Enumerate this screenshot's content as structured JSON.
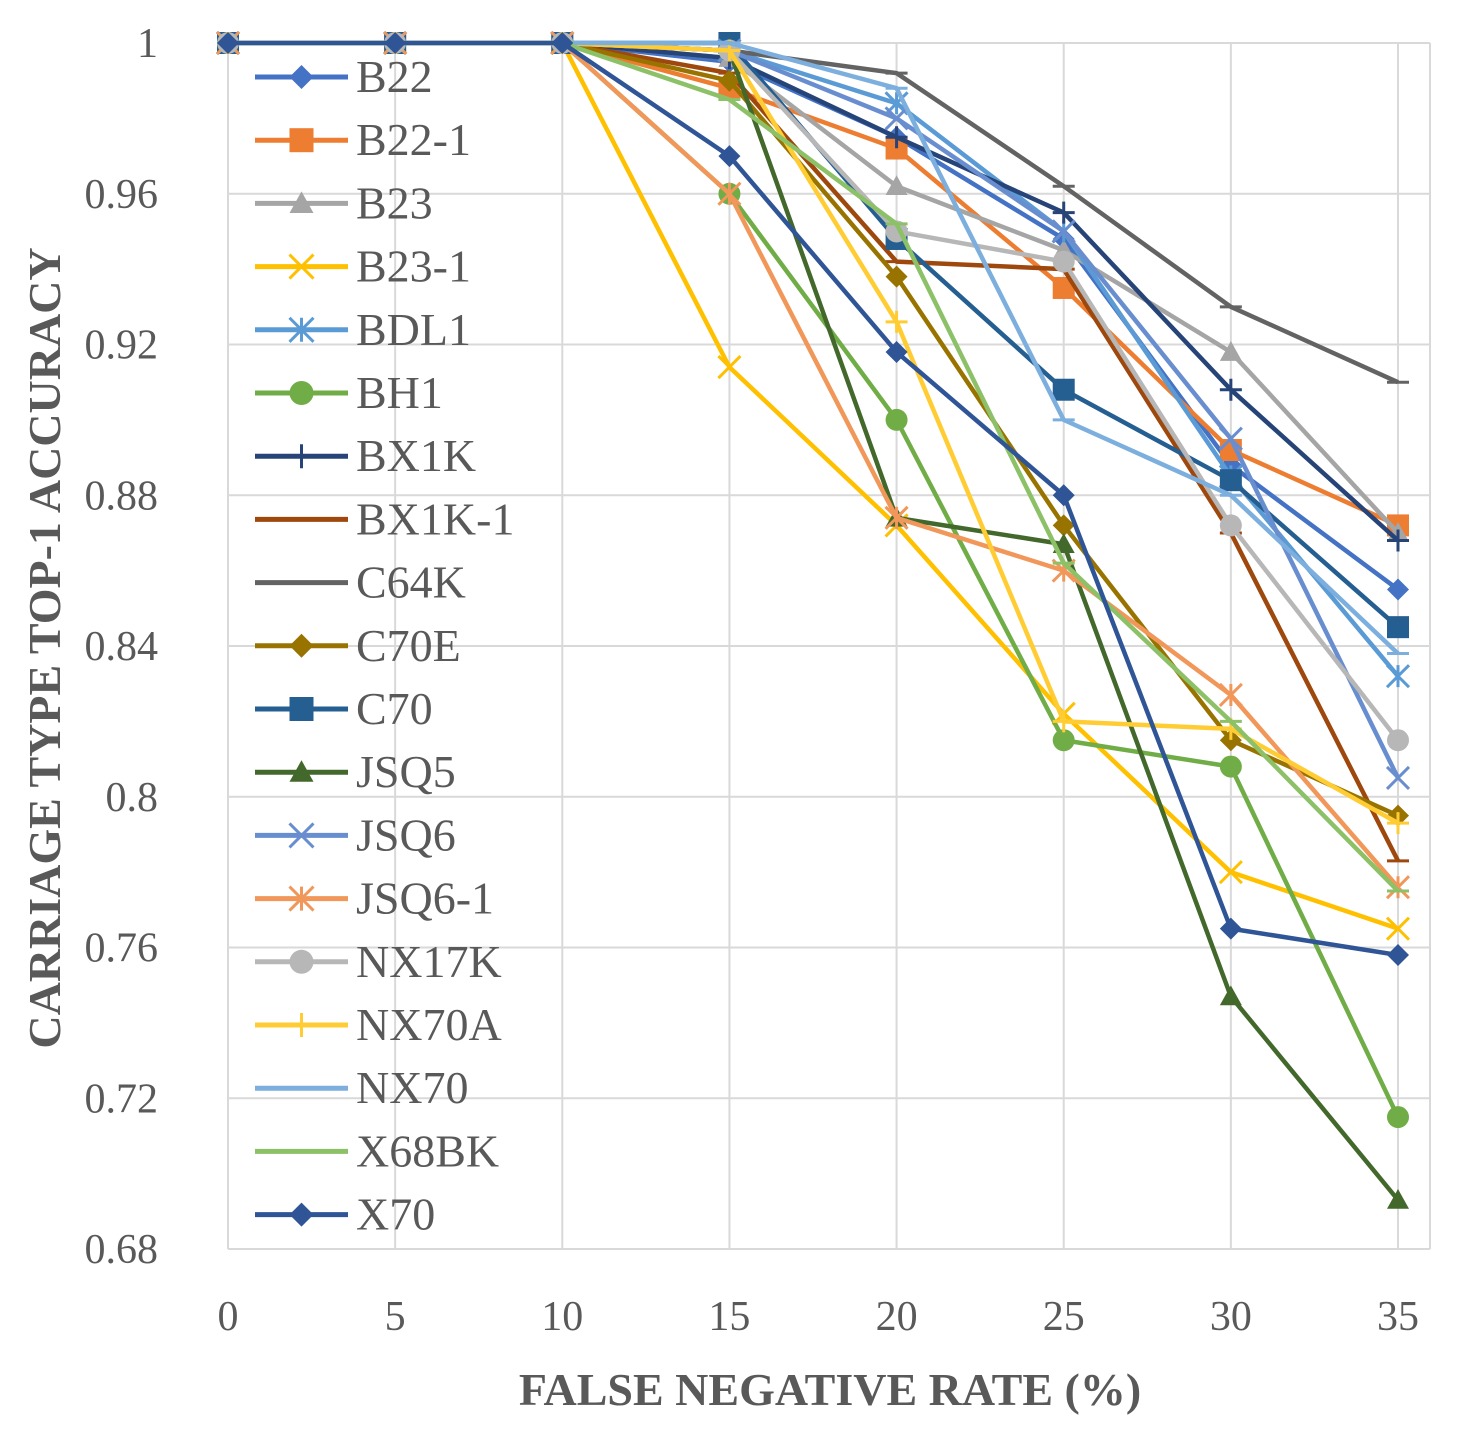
{
  "chart_data": {
    "type": "line",
    "title": "",
    "xlabel": "FALSE NEGATIVE RATE (%)",
    "ylabel": "CARRIAGE TYPE TOP-1 ACCURACY",
    "x": [
      0,
      5,
      10,
      15,
      20,
      25,
      30,
      35
    ],
    "x_ticks": [
      "0",
      "5",
      "10",
      "15",
      "20",
      "25",
      "30",
      "35"
    ],
    "y_ticks": [
      "0.68",
      "0.72",
      "0.76",
      "0.8",
      "0.84",
      "0.88",
      "0.92",
      "0.96",
      "1"
    ],
    "ylim": [
      0.68,
      1.0
    ],
    "xlim": [
      0,
      35
    ],
    "grid": true,
    "legend_position": "top-left",
    "series": [
      {
        "name": "B22",
        "color": "#4472c4",
        "marker": "diamond",
        "values": [
          1,
          1,
          1,
          0.995,
          0.975,
          0.948,
          0.888,
          0.855
        ]
      },
      {
        "name": "B22-1",
        "color": "#ed7d31",
        "marker": "square",
        "values": [
          1,
          1,
          1,
          0.988,
          0.972,
          0.935,
          0.892,
          0.872
        ]
      },
      {
        "name": "B23",
        "color": "#a5a5a5",
        "marker": "triangle",
        "values": [
          1,
          1,
          1,
          0.996,
          0.962,
          0.945,
          0.918,
          0.87
        ]
      },
      {
        "name": "B23-1",
        "color": "#ffc000",
        "marker": "x",
        "values": [
          1,
          1,
          1,
          0.914,
          0.872,
          0.822,
          0.78,
          0.765
        ]
      },
      {
        "name": "BDL1",
        "color": "#5b9bd5",
        "marker": "asterisk",
        "values": [
          1,
          1,
          1,
          0.998,
          0.984,
          0.95,
          0.885,
          0.832
        ]
      },
      {
        "name": "BH1",
        "color": "#70ad47",
        "marker": "circle",
        "values": [
          1,
          1,
          1,
          0.96,
          0.9,
          0.815,
          0.808,
          0.715
        ]
      },
      {
        "name": "BX1K",
        "color": "#264478",
        "marker": "plus",
        "values": [
          1,
          1,
          1,
          0.996,
          0.975,
          0.955,
          0.908,
          0.868
        ]
      },
      {
        "name": "BX1K-1",
        "color": "#9e480e",
        "marker": "none",
        "values": [
          1,
          1,
          1,
          0.992,
          0.942,
          0.94,
          0.87,
          0.783
        ]
      },
      {
        "name": "C64K",
        "color": "#636363",
        "marker": "none",
        "values": [
          1,
          1,
          1,
          0.998,
          0.992,
          0.962,
          0.93,
          0.91
        ]
      },
      {
        "name": "C70E",
        "color": "#997300",
        "marker": "diamond",
        "values": [
          1,
          1,
          1,
          0.99,
          0.938,
          0.872,
          0.815,
          0.795
        ]
      },
      {
        "name": "C70",
        "color": "#255e91",
        "marker": "square",
        "values": [
          1,
          1,
          1,
          1.0,
          0.948,
          0.908,
          0.884,
          0.845
        ]
      },
      {
        "name": "JSQ5",
        "color": "#43682b",
        "marker": "triangle",
        "values": [
          1,
          1,
          1,
          0.998,
          0.874,
          0.867,
          0.747,
          0.693
        ]
      },
      {
        "name": "JSQ6",
        "color": "#698ed0",
        "marker": "x",
        "values": [
          1,
          1,
          1,
          0.998,
          0.98,
          0.95,
          0.895,
          0.805
        ]
      },
      {
        "name": "JSQ6-1",
        "color": "#f1975a",
        "marker": "asterisk",
        "values": [
          1,
          1,
          1,
          0.96,
          0.874,
          0.86,
          0.827,
          0.776
        ]
      },
      {
        "name": "NX17K",
        "color": "#b7b7b7",
        "marker": "circle",
        "values": [
          1,
          1,
          1,
          0.998,
          0.95,
          0.942,
          0.872,
          0.815
        ]
      },
      {
        "name": "NX70A",
        "color": "#ffcd33",
        "marker": "plus",
        "values": [
          1,
          1,
          1,
          0.998,
          0.926,
          0.82,
          0.818,
          0.793
        ]
      },
      {
        "name": "NX70",
        "color": "#7cafdd",
        "marker": "none",
        "values": [
          1,
          1,
          1,
          1.0,
          0.988,
          0.9,
          0.88,
          0.838
        ]
      },
      {
        "name": "X68BK",
        "color": "#8cc168",
        "marker": "none",
        "values": [
          1,
          1,
          1,
          0.985,
          0.952,
          0.862,
          0.82,
          0.775
        ]
      },
      {
        "name": "X70",
        "color": "#2f5597",
        "marker": "diamond",
        "values": [
          1,
          1,
          1,
          0.97,
          0.918,
          0.88,
          0.765,
          0.758
        ]
      }
    ]
  }
}
